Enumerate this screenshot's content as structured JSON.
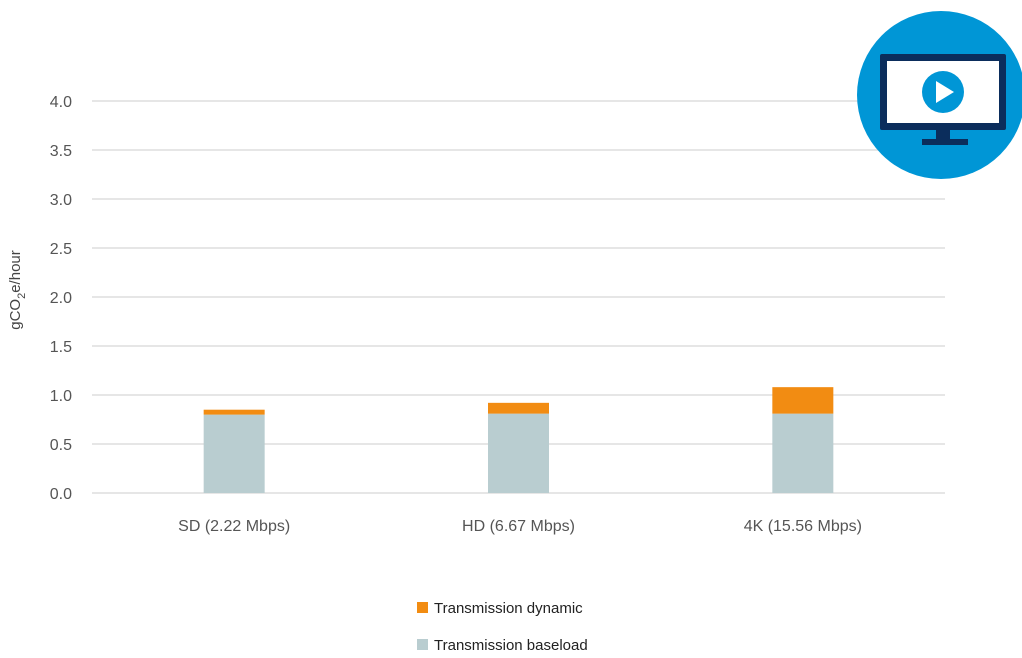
{
  "chart_data": {
    "type": "bar",
    "stacked": true,
    "categories": [
      "SD (2.22 Mbps)",
      "HD (6.67 Mbps)",
      "4K (15.56 Mbps)"
    ],
    "series": [
      {
        "name": "Transmission baseload",
        "color": "#b9cdd0",
        "values": [
          0.8,
          0.81,
          0.81
        ]
      },
      {
        "name": "Transmission dynamic",
        "color": "#f28c12",
        "values": [
          0.05,
          0.11,
          0.27
        ]
      }
    ],
    "ylabel": {
      "prefix": "gCO",
      "subscript": "2",
      "suffix": "e/hour"
    },
    "ylim": [
      0,
      4.0
    ],
    "yticks": [
      "0.0",
      "0.5",
      "1.0",
      "1.5",
      "2.0",
      "2.5",
      "3.0",
      "3.5",
      "4.0"
    ],
    "grid": true,
    "legend_position": "bottom-center",
    "legend_order": [
      "Transmission dynamic",
      "Transmission baseload"
    ]
  },
  "badge": {
    "icon": "monitor-play-icon",
    "circle_color": "#0096d6",
    "screen_color": "#0b2d5c",
    "play_color": "#0096d6"
  }
}
